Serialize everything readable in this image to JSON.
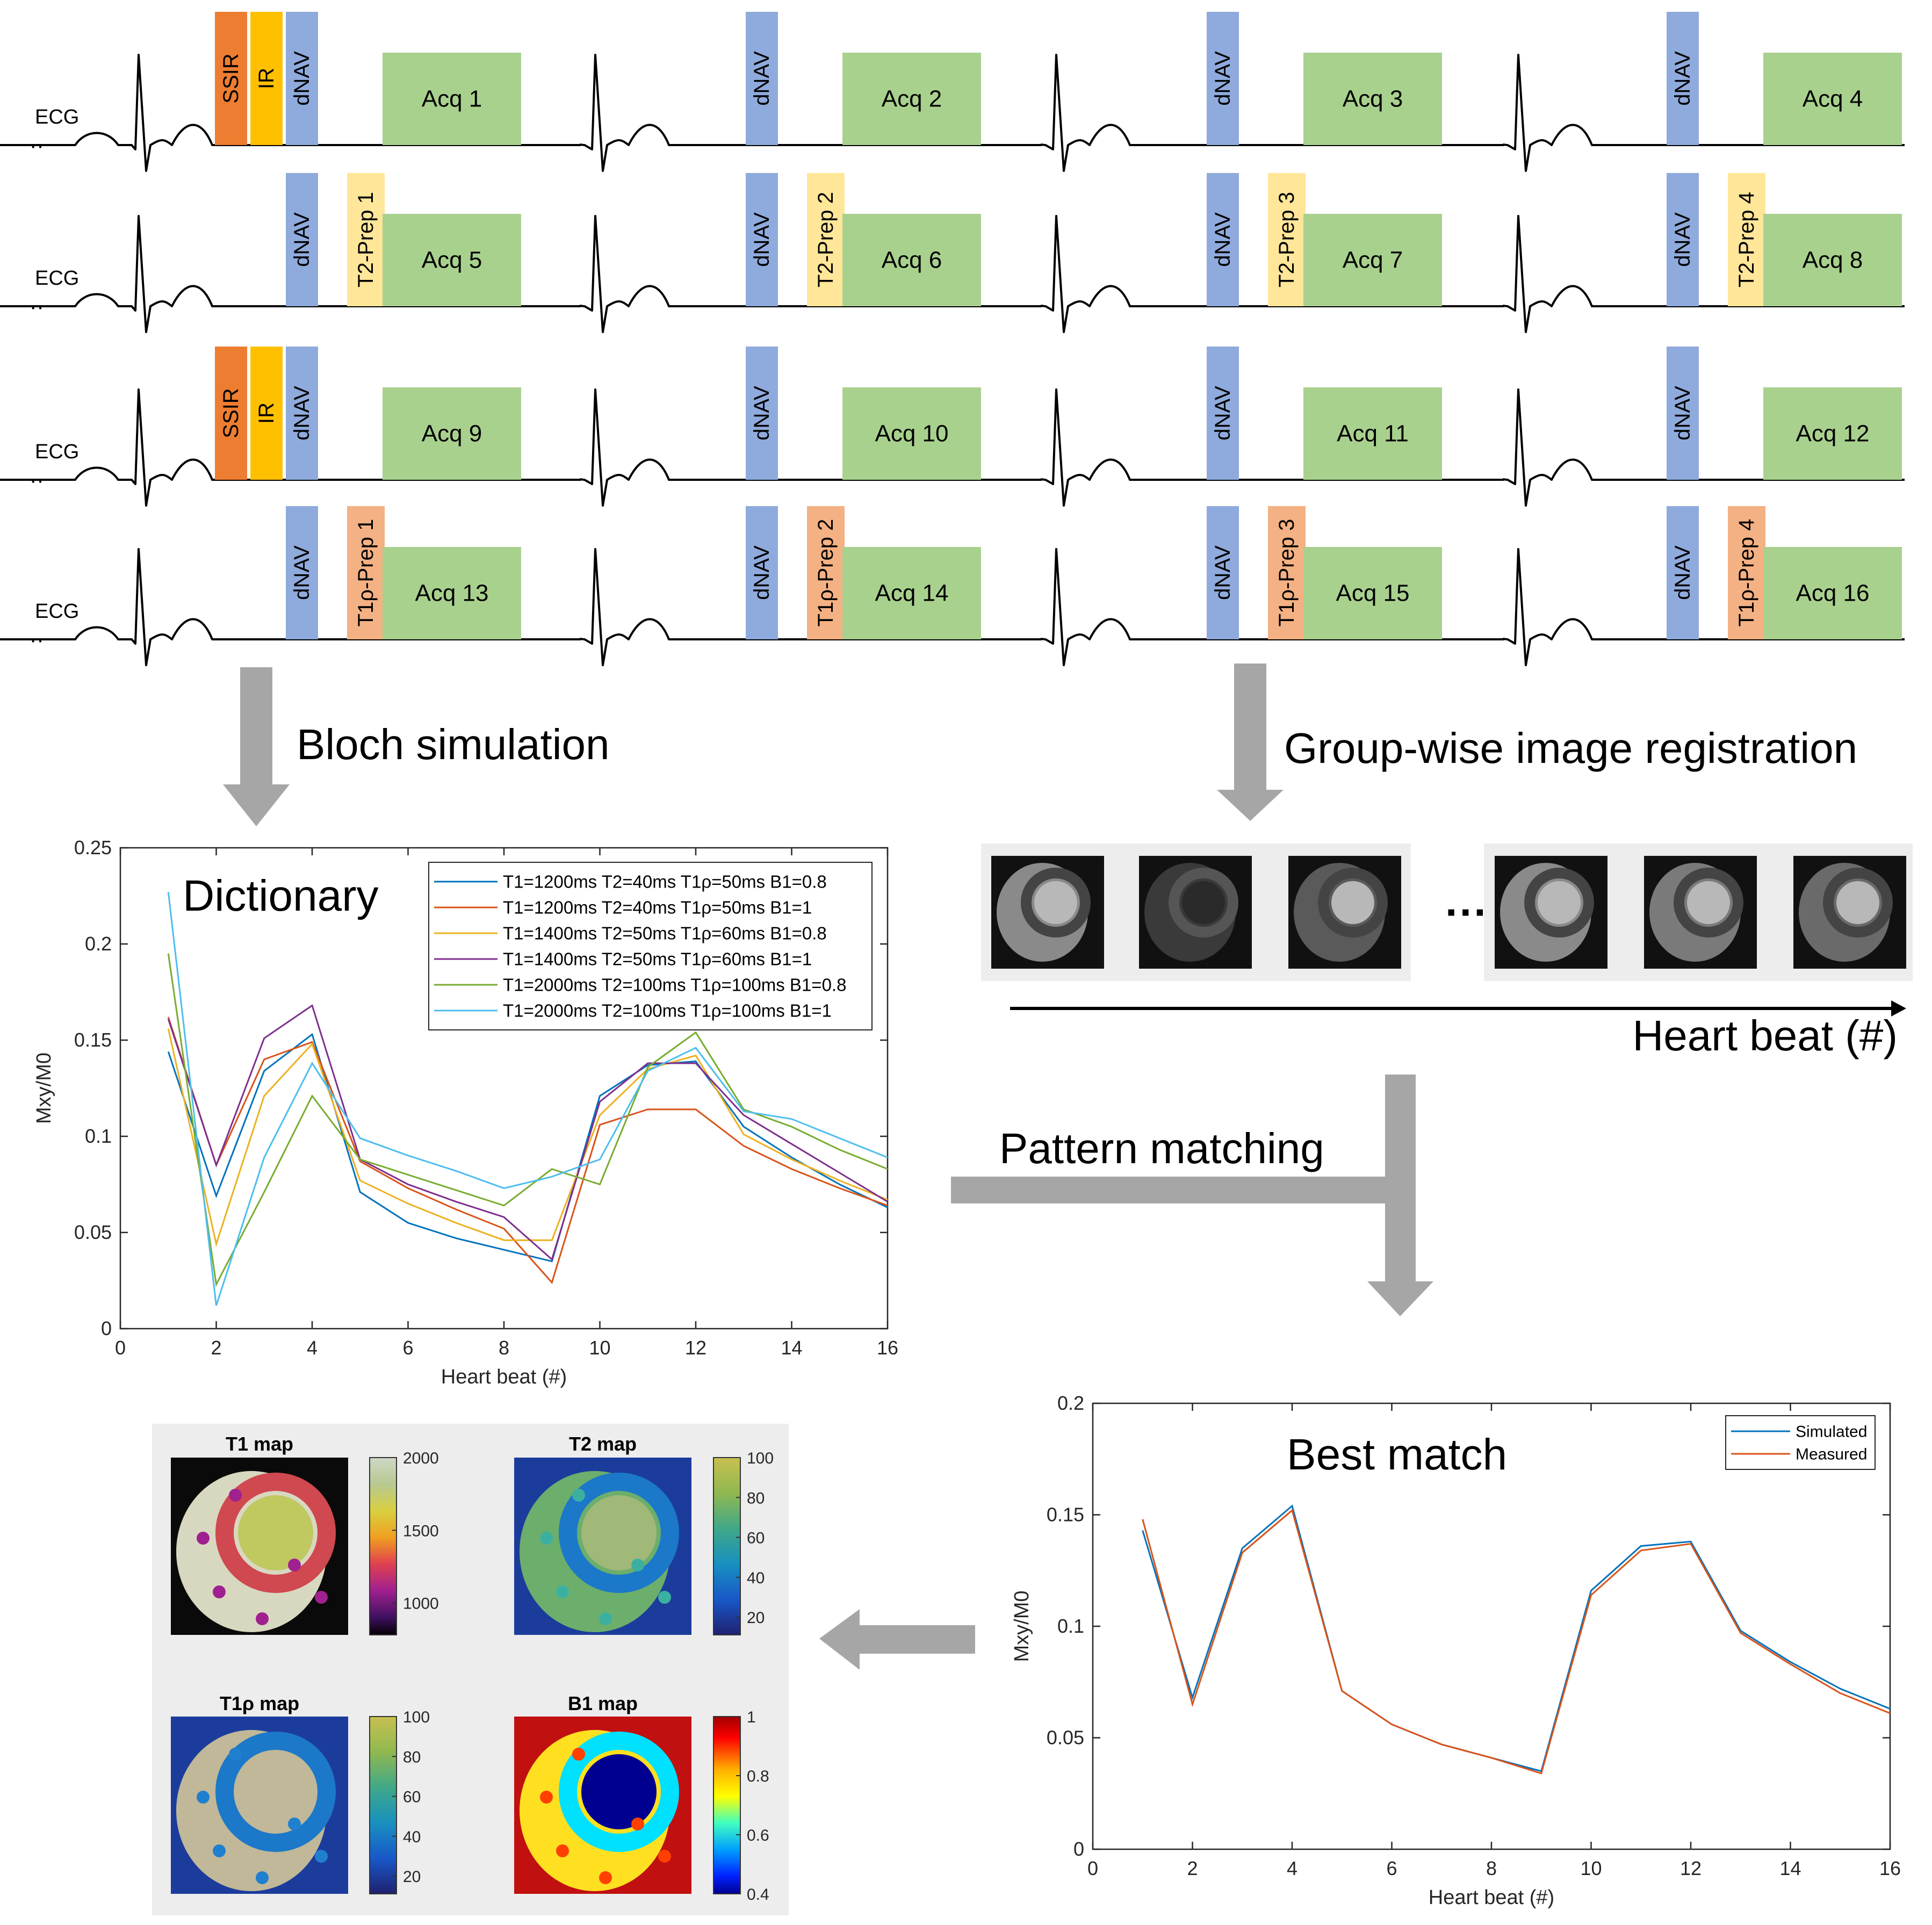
{
  "sequence": {
    "rows": [
      {
        "ecg_label": "ECG",
        "beats": [
          {
            "blocks": [
              {
                "type": "ssir",
                "label": "SSIR"
              },
              {
                "type": "ir",
                "label": "IR"
              },
              {
                "type": "dnav",
                "label": "dNAV"
              }
            ],
            "acq": "Acq 1"
          },
          {
            "blocks": [
              {
                "type": "dnav",
                "label": "dNAV"
              }
            ],
            "acq": "Acq 2"
          },
          {
            "blocks": [
              {
                "type": "dnav",
                "label": "dNAV"
              }
            ],
            "acq": "Acq 3"
          },
          {
            "blocks": [
              {
                "type": "dnav",
                "label": "dNAV"
              }
            ],
            "acq": "Acq 4"
          }
        ]
      },
      {
        "ecg_label": "ECG",
        "beats": [
          {
            "blocks": [
              {
                "type": "dnav",
                "label": "dNAV"
              },
              {
                "type": "t2",
                "label": "T2-Prep 1"
              }
            ],
            "acq": "Acq 5"
          },
          {
            "blocks": [
              {
                "type": "dnav",
                "label": "dNAV"
              },
              {
                "type": "t2",
                "label": "T2-Prep 2"
              }
            ],
            "acq": "Acq 6"
          },
          {
            "blocks": [
              {
                "type": "dnav",
                "label": "dNAV"
              },
              {
                "type": "t2",
                "label": "T2-Prep 3"
              }
            ],
            "acq": "Acq 7"
          },
          {
            "blocks": [
              {
                "type": "dnav",
                "label": "dNAV"
              },
              {
                "type": "t2",
                "label": "T2-Prep 4"
              }
            ],
            "acq": "Acq 8"
          }
        ]
      },
      {
        "ecg_label": "ECG",
        "beats": [
          {
            "blocks": [
              {
                "type": "ssir",
                "label": "SSIR"
              },
              {
                "type": "ir",
                "label": "IR"
              },
              {
                "type": "dnav",
                "label": "dNAV"
              }
            ],
            "acq": "Acq 9"
          },
          {
            "blocks": [
              {
                "type": "dnav",
                "label": "dNAV"
              }
            ],
            "acq": "Acq 10"
          },
          {
            "blocks": [
              {
                "type": "dnav",
                "label": "dNAV"
              }
            ],
            "acq": "Acq 11"
          },
          {
            "blocks": [
              {
                "type": "dnav",
                "label": "dNAV"
              }
            ],
            "acq": "Acq 12"
          }
        ]
      },
      {
        "ecg_label": "ECG",
        "beats": [
          {
            "blocks": [
              {
                "type": "dnav",
                "label": "dNAV"
              },
              {
                "type": "t1rho",
                "label": "T1ρ-Prep 1"
              }
            ],
            "acq": "Acq 13"
          },
          {
            "blocks": [
              {
                "type": "dnav",
                "label": "dNAV"
              },
              {
                "type": "t1rho",
                "label": "T1ρ-Prep 2"
              }
            ],
            "acq": "Acq 14"
          },
          {
            "blocks": [
              {
                "type": "dnav",
                "label": "dNAV"
              },
              {
                "type": "t1rho",
                "label": "T1ρ-Prep 3"
              }
            ],
            "acq": "Acq 15"
          },
          {
            "blocks": [
              {
                "type": "dnav",
                "label": "dNAV"
              },
              {
                "type": "t1rho",
                "label": "T1ρ-Prep 4"
              }
            ],
            "acq": "Acq 16"
          }
        ]
      }
    ],
    "colors": {
      "ssir": "#ED7D31",
      "ir": "#FFC000",
      "dnav": "#8FAADC",
      "t2": "#FFE699",
      "t1rho": "#F4B183",
      "acq": "#A9D18E"
    }
  },
  "steps": {
    "bloch": "Bloch simulation",
    "registration": "Group-wise image registration",
    "pattern": "Pattern matching",
    "heartbeat_axis": "Heart beat (#)",
    "ellipsis": "···"
  },
  "dictionary_chart": {
    "type": "line",
    "title": "Dictionary",
    "xlabel": "Heart beat (#)",
    "ylabel": "Mxy/M0",
    "xlim": [
      0,
      16
    ],
    "ylim": [
      0,
      0.25
    ],
    "xticks": [
      "0",
      "2",
      "4",
      "6",
      "8",
      "10",
      "12",
      "14",
      "16"
    ],
    "yticks": [
      "0",
      "0.05",
      "0.1",
      "0.15",
      "0.2",
      "0.25"
    ],
    "legend_position": "top-right",
    "x": [
      1,
      2,
      3,
      4,
      5,
      6,
      7,
      8,
      9,
      10,
      11,
      12,
      13,
      14,
      15,
      16
    ],
    "series": [
      {
        "name": "T1=1200ms T2=40ms  T1ρ=50ms  B1=0.8",
        "color": "#0072BD",
        "values": [
          0.144,
          0.069,
          0.134,
          0.153,
          0.071,
          0.055,
          0.047,
          0.041,
          0.035,
          0.121,
          0.137,
          0.139,
          0.105,
          0.089,
          0.075,
          0.063
        ]
      },
      {
        "name": "T1=1200ms T2=40ms  T1ρ=50ms  B1=1",
        "color": "#D95319",
        "values": [
          0.162,
          0.085,
          0.14,
          0.149,
          0.087,
          0.073,
          0.062,
          0.052,
          0.024,
          0.106,
          0.114,
          0.114,
          0.095,
          0.083,
          0.073,
          0.064
        ]
      },
      {
        "name": "T1=1400ms T2=50ms  T1ρ=60ms  B1=0.8",
        "color": "#EDB120",
        "values": [
          0.156,
          0.044,
          0.121,
          0.148,
          0.077,
          0.065,
          0.055,
          0.046,
          0.046,
          0.111,
          0.135,
          0.142,
          0.101,
          0.088,
          0.077,
          0.067
        ]
      },
      {
        "name": "T1=1400ms T2=50ms  T1ρ=60ms  B1=1",
        "color": "#7E2F8E",
        "values": [
          0.161,
          0.085,
          0.151,
          0.168,
          0.088,
          0.075,
          0.066,
          0.058,
          0.036,
          0.118,
          0.138,
          0.138,
          0.111,
          0.096,
          0.081,
          0.066
        ]
      },
      {
        "name": "T1=2000ms T2=100ms T1ρ=100ms B1=0.8",
        "color": "#77AC30",
        "values": [
          0.195,
          0.023,
          0.071,
          0.121,
          0.088,
          0.08,
          0.072,
          0.064,
          0.083,
          0.075,
          0.136,
          0.154,
          0.114,
          0.105,
          0.093,
          0.083
        ]
      },
      {
        "name": "T1=2000ms T2=100ms T1ρ=100ms B1=1",
        "color": "#4DBEEE",
        "values": [
          0.227,
          0.012,
          0.089,
          0.138,
          0.099,
          0.09,
          0.082,
          0.073,
          0.079,
          0.088,
          0.134,
          0.146,
          0.113,
          0.109,
          0.099,
          0.089
        ]
      }
    ]
  },
  "best_match_chart": {
    "type": "line",
    "title": "Best match",
    "xlabel": "Heart beat (#)",
    "ylabel": "Mxy/M0",
    "xlim": [
      0,
      16
    ],
    "ylim": [
      0,
      0.2
    ],
    "xticks": [
      "0",
      "2",
      "4",
      "6",
      "8",
      "10",
      "12",
      "14",
      "16"
    ],
    "yticks": [
      "0",
      "0.05",
      "0.1",
      "0.15",
      "0.2"
    ],
    "legend_position": "top-right",
    "x": [
      1,
      2,
      3,
      4,
      5,
      6,
      7,
      8,
      9,
      10,
      11,
      12,
      13,
      14,
      15,
      16
    ],
    "series": [
      {
        "name": "Simulated",
        "color": "#0072BD",
        "values": [
          0.143,
          0.068,
          0.135,
          0.154,
          0.071,
          0.056,
          0.047,
          0.041,
          0.035,
          0.116,
          0.136,
          0.138,
          0.098,
          0.084,
          0.072,
          0.063
        ]
      },
      {
        "name": "Measured",
        "color": "#D95319",
        "values": [
          0.148,
          0.065,
          0.133,
          0.152,
          0.071,
          0.056,
          0.047,
          0.041,
          0.034,
          0.114,
          0.134,
          0.137,
          0.097,
          0.083,
          0.07,
          0.061
        ]
      }
    ]
  },
  "maps": [
    {
      "title": "T1 map",
      "scale": "t1",
      "ticks": [
        "2000",
        "1500",
        "1000"
      ]
    },
    {
      "title": "T2 map",
      "scale": "parula",
      "ticks": [
        "100",
        "80",
        "60",
        "40",
        "20"
      ]
    },
    {
      "title": "T1ρ map",
      "scale": "parula",
      "ticks": [
        "100",
        "80",
        "60",
        "40",
        "20"
      ]
    },
    {
      "title": "B1 map",
      "scale": "jet",
      "ticks": [
        "1",
        "0.8",
        "0.6",
        "0.4"
      ]
    }
  ]
}
